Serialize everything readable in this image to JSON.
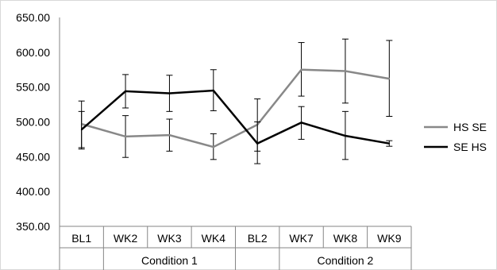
{
  "chart_data": {
    "type": "line",
    "categories": [
      "BL1",
      "WK2",
      "WK3",
      "WK4",
      "BL2",
      "WK7",
      "WK8",
      "WK9"
    ],
    "groups": [
      {
        "label": "Condition 1",
        "start": 1,
        "end": 3
      },
      {
        "label": "Condition 2",
        "start": 5,
        "end": 7
      }
    ],
    "ylim": [
      350,
      650
    ],
    "ytick_step": 50,
    "y_tick_labels": [
      "350.00",
      "400.00",
      "450.00",
      "500.00",
      "550.00",
      "600.00",
      "650.00"
    ],
    "grid": false,
    "legend_position": "right",
    "series": [
      {
        "name": "HS SE",
        "color": "#888888",
        "values": [
          497,
          479,
          481,
          464,
          496,
          575,
          573,
          562
        ],
        "error_low": [
          463,
          449,
          458,
          446,
          458,
          537,
          527,
          508
        ],
        "error_high": [
          530,
          509,
          504,
          483,
          533,
          614,
          619,
          617
        ]
      },
      {
        "name": "SE HS",
        "color": "#000000",
        "values": [
          489,
          544,
          541,
          545,
          469,
          499,
          480,
          469
        ],
        "error_low": [
          461,
          520,
          515,
          516,
          440,
          475,
          446,
          465
        ],
        "error_high": [
          515,
          568,
          567,
          575,
          500,
          522,
          515,
          473
        ]
      }
    ]
  }
}
